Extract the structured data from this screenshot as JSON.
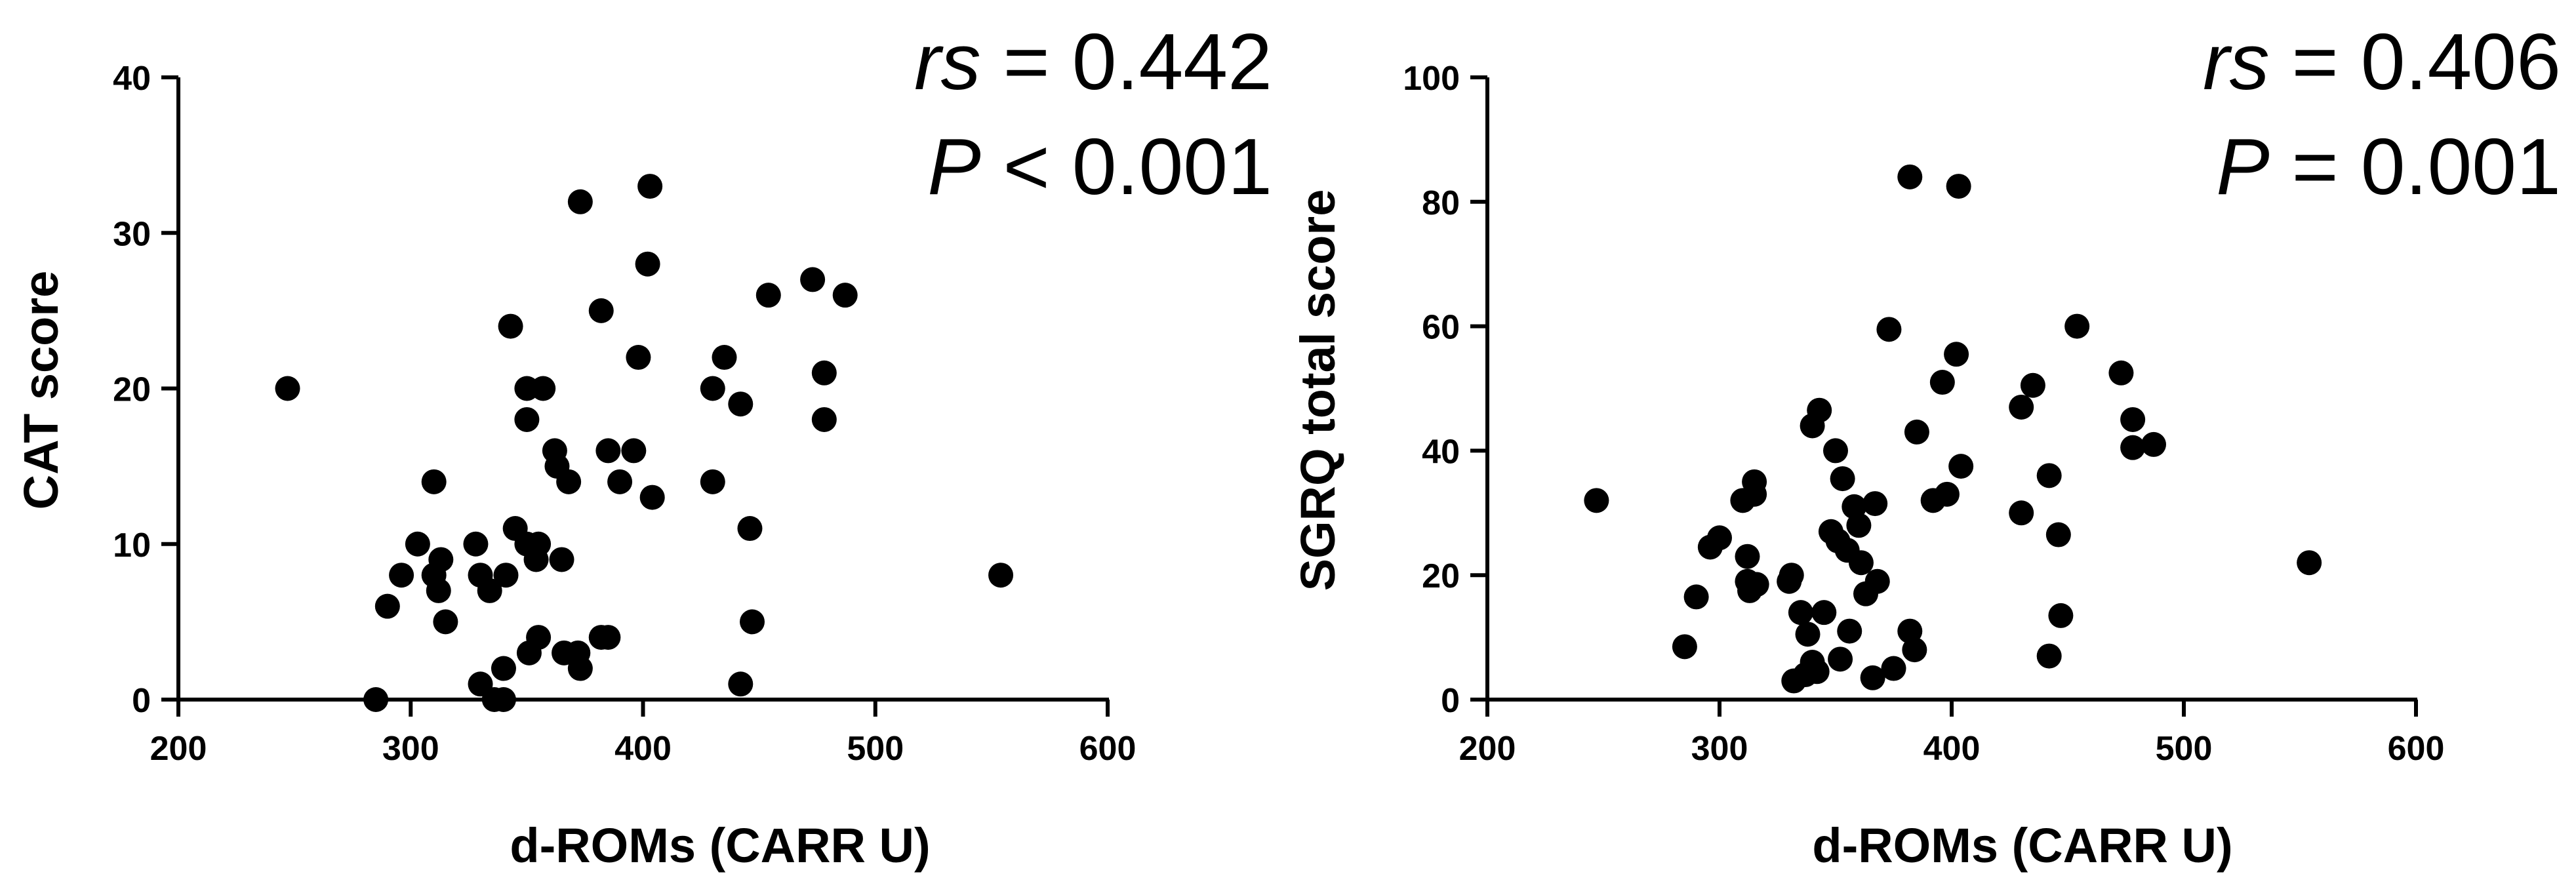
{
  "chart_data": [
    {
      "type": "scatter",
      "xlabel": "d-ROMs (CARR U)",
      "ylabel": "CAT score",
      "xlim": [
        200,
        600
      ],
      "ylim": [
        0,
        40
      ],
      "xticks": [
        200,
        300,
        400,
        500,
        600
      ],
      "yticks": [
        0,
        10,
        20,
        30,
        40
      ],
      "grid": false,
      "stat_line1": {
        "symbol": "rs",
        "text": " = 0.442"
      },
      "stat_line2": {
        "symbol": "P",
        "text": " < 0.001"
      },
      "points": [
        {
          "x": 247,
          "y": 20
        },
        {
          "x": 285,
          "y": 0
        },
        {
          "x": 290,
          "y": 6
        },
        {
          "x": 296,
          "y": 8
        },
        {
          "x": 303,
          "y": 10
        },
        {
          "x": 310,
          "y": 14
        },
        {
          "x": 310,
          "y": 8
        },
        {
          "x": 312,
          "y": 7
        },
        {
          "x": 313,
          "y": 9
        },
        {
          "x": 315,
          "y": 5
        },
        {
          "x": 328,
          "y": 10
        },
        {
          "x": 330,
          "y": 8
        },
        {
          "x": 330,
          "y": 1
        },
        {
          "x": 334,
          "y": 7
        },
        {
          "x": 336,
          "y": 0
        },
        {
          "x": 340,
          "y": 0
        },
        {
          "x": 340,
          "y": 2
        },
        {
          "x": 341,
          "y": 8
        },
        {
          "x": 343,
          "y": 24
        },
        {
          "x": 345,
          "y": 11
        },
        {
          "x": 350,
          "y": 20
        },
        {
          "x": 350,
          "y": 18
        },
        {
          "x": 350,
          "y": 10
        },
        {
          "x": 351,
          "y": 3
        },
        {
          "x": 354,
          "y": 9
        },
        {
          "x": 355,
          "y": 10
        },
        {
          "x": 355,
          "y": 4
        },
        {
          "x": 357,
          "y": 20
        },
        {
          "x": 362,
          "y": 16
        },
        {
          "x": 363,
          "y": 15
        },
        {
          "x": 365,
          "y": 9
        },
        {
          "x": 366,
          "y": 3
        },
        {
          "x": 368,
          "y": 14
        },
        {
          "x": 372,
          "y": 3
        },
        {
          "x": 373,
          "y": 32
        },
        {
          "x": 373,
          "y": 2
        },
        {
          "x": 382,
          "y": 25
        },
        {
          "x": 382,
          "y": 4
        },
        {
          "x": 385,
          "y": 16
        },
        {
          "x": 385,
          "y": 4
        },
        {
          "x": 390,
          "y": 14
        },
        {
          "x": 396,
          "y": 16
        },
        {
          "x": 398,
          "y": 22
        },
        {
          "x": 402,
          "y": 28
        },
        {
          "x": 403,
          "y": 33
        },
        {
          "x": 404,
          "y": 13
        },
        {
          "x": 430,
          "y": 20
        },
        {
          "x": 430,
          "y": 14
        },
        {
          "x": 435,
          "y": 22
        },
        {
          "x": 442,
          "y": 19
        },
        {
          "x": 442,
          "y": 1
        },
        {
          "x": 446,
          "y": 11
        },
        {
          "x": 447,
          "y": 5
        },
        {
          "x": 454,
          "y": 26
        },
        {
          "x": 473,
          "y": 27
        },
        {
          "x": 478,
          "y": 21
        },
        {
          "x": 478,
          "y": 18
        },
        {
          "x": 487,
          "y": 26
        },
        {
          "x": 554,
          "y": 8
        }
      ]
    },
    {
      "type": "scatter",
      "xlabel": "d-ROMs (CARR U)",
      "ylabel": "SGRQ total score",
      "xlim": [
        200,
        600
      ],
      "ylim": [
        0,
        100
      ],
      "xticks": [
        200,
        300,
        400,
        500,
        600
      ],
      "yticks": [
        0,
        20,
        40,
        60,
        80,
        100
      ],
      "grid": false,
      "stat_line1": {
        "symbol": "rs",
        "text": " = 0.406"
      },
      "stat_line2": {
        "symbol": "P",
        "text": " = 0.001"
      },
      "points": [
        {
          "x": 247,
          "y": 32
        },
        {
          "x": 285,
          "y": 8.5
        },
        {
          "x": 290,
          "y": 16.5
        },
        {
          "x": 296,
          "y": 24.5
        },
        {
          "x": 300,
          "y": 26
        },
        {
          "x": 310,
          "y": 32
        },
        {
          "x": 312,
          "y": 23
        },
        {
          "x": 312,
          "y": 19
        },
        {
          "x": 313,
          "y": 17.5
        },
        {
          "x": 315,
          "y": 35
        },
        {
          "x": 315,
          "y": 33
        },
        {
          "x": 316,
          "y": 18.5
        },
        {
          "x": 330,
          "y": 19
        },
        {
          "x": 331,
          "y": 20
        },
        {
          "x": 332,
          "y": 3
        },
        {
          "x": 335,
          "y": 14
        },
        {
          "x": 337,
          "y": 4
        },
        {
          "x": 338,
          "y": 10.5
        },
        {
          "x": 340,
          "y": 44
        },
        {
          "x": 340,
          "y": 6
        },
        {
          "x": 342,
          "y": 4.5
        },
        {
          "x": 343,
          "y": 46.5
        },
        {
          "x": 345,
          "y": 14
        },
        {
          "x": 348,
          "y": 27
        },
        {
          "x": 350,
          "y": 40
        },
        {
          "x": 351,
          "y": 25.5
        },
        {
          "x": 352,
          "y": 6.5
        },
        {
          "x": 353,
          "y": 35.5
        },
        {
          "x": 355,
          "y": 24
        },
        {
          "x": 356,
          "y": 11
        },
        {
          "x": 358,
          "y": 31
        },
        {
          "x": 360,
          "y": 28
        },
        {
          "x": 361,
          "y": 22
        },
        {
          "x": 363,
          "y": 17
        },
        {
          "x": 366,
          "y": 3.5
        },
        {
          "x": 367,
          "y": 31.5
        },
        {
          "x": 368,
          "y": 19
        },
        {
          "x": 373,
          "y": 59.5
        },
        {
          "x": 375,
          "y": 5
        },
        {
          "x": 382,
          "y": 84
        },
        {
          "x": 382,
          "y": 11
        },
        {
          "x": 384,
          "y": 8
        },
        {
          "x": 385,
          "y": 43
        },
        {
          "x": 392,
          "y": 32
        },
        {
          "x": 396,
          "y": 51
        },
        {
          "x": 398,
          "y": 33
        },
        {
          "x": 402,
          "y": 55.5
        },
        {
          "x": 403,
          "y": 82.5
        },
        {
          "x": 404,
          "y": 37.5
        },
        {
          "x": 430,
          "y": 47
        },
        {
          "x": 430,
          "y": 30
        },
        {
          "x": 435,
          "y": 50.5
        },
        {
          "x": 442,
          "y": 36
        },
        {
          "x": 442,
          "y": 7
        },
        {
          "x": 446,
          "y": 26.5
        },
        {
          "x": 447,
          "y": 13.5
        },
        {
          "x": 454,
          "y": 60
        },
        {
          "x": 473,
          "y": 52.5
        },
        {
          "x": 478,
          "y": 45
        },
        {
          "x": 478,
          "y": 40.5
        },
        {
          "x": 487,
          "y": 41
        },
        {
          "x": 554,
          "y": 22
        }
      ]
    }
  ]
}
